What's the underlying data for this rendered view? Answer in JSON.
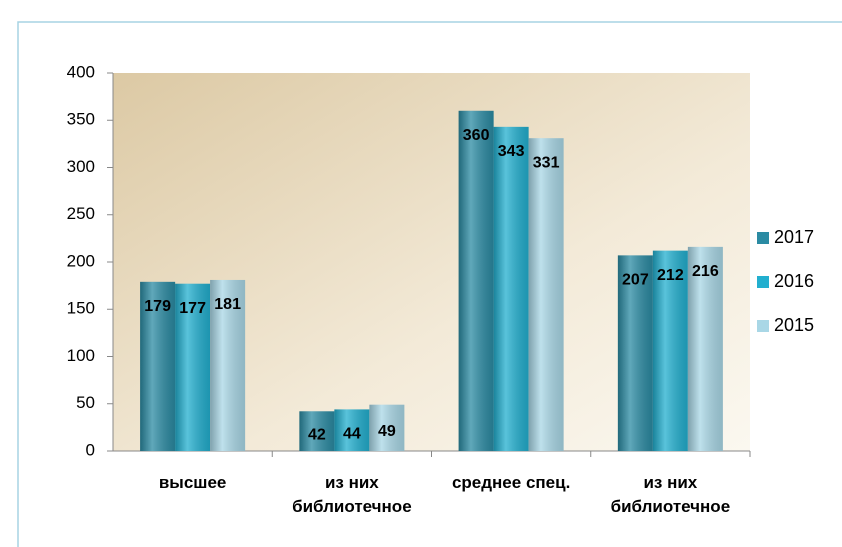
{
  "chart_data": {
    "type": "bar",
    "categories": [
      "высшее",
      "из них библиотечное",
      "среднее спец.",
      "из них библиотечное"
    ],
    "series": [
      {
        "name": "2017",
        "color": "#2b8ba3",
        "values": [
          179,
          42,
          360,
          207
        ]
      },
      {
        "name": "2016",
        "color": "#22afcf",
        "values": [
          177,
          44,
          343,
          212
        ]
      },
      {
        "name": "2015",
        "color": "#a9d7e6",
        "values": [
          181,
          49,
          331,
          216
        ]
      }
    ],
    "ylim": [
      0,
      400
    ],
    "yticks": [
      0,
      50,
      100,
      150,
      200,
      250,
      300,
      350,
      400
    ],
    "legend": "right"
  }
}
